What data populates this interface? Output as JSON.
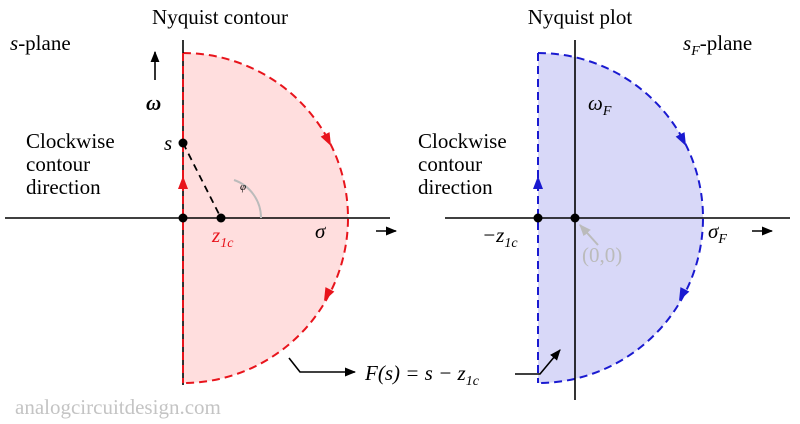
{
  "left": {
    "title": "Nyquist contour",
    "plane": {
      "var": "s",
      "suffix": "-plane"
    },
    "omega": "ω",
    "direction": [
      "Clockwise",
      "contour",
      "direction"
    ],
    "point": "s",
    "angle": "φ",
    "zero": {
      "main": "z",
      "sub": "1c"
    },
    "sigma": "σ"
  },
  "right": {
    "title": "Nyquist plot",
    "plane": {
      "var": "s",
      "sub": "F",
      "suffix": "-plane"
    },
    "omega": {
      "main": "ω",
      "sub": "F"
    },
    "direction": [
      "Clockwise",
      "contour",
      "direction"
    ],
    "zero": {
      "main": "−z",
      "sub": "1c"
    },
    "origin": "(0,0)",
    "sigma": {
      "main": "σ",
      "sub": "F"
    }
  },
  "mapping": {
    "func": "F(s)",
    "eq": " = s − ",
    "main": "z",
    "sub": "1c"
  },
  "watermark": "analogcircuitdesign.com"
}
